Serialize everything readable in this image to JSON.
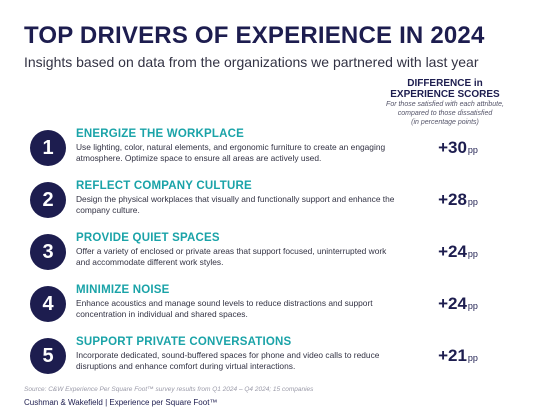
{
  "header": {
    "title": "TOP DRIVERS OF EXPERIENCE IN 2024",
    "subtitle": "Insights based on data from the organizations we partnered with last year"
  },
  "column_header": {
    "title_line1": "DIFFERENCE in",
    "title_line2": "EXPERIENCE SCORES",
    "note_line1": "For those satisfied with each attribute,",
    "note_line2": "compared to those dissatisfied",
    "note_line3": "(in percentage points)"
  },
  "drivers": [
    {
      "number": "1",
      "title": "ENERGIZE THE WORKPLACE",
      "description": "Use lighting, color, natural elements, and ergonomic furniture to create an engaging atmosphere. Optimize space to ensure all areas are actively used.",
      "score": "+30",
      "unit": "pp"
    },
    {
      "number": "2",
      "title": "REFLECT COMPANY CULTURE",
      "description": "Design the physical workplaces that visually and functionally support and enhance the company culture.",
      "score": "+28",
      "unit": "pp"
    },
    {
      "number": "3",
      "title": "PROVIDE QUIET SPACES",
      "description": "Offer a variety of enclosed or private areas that support focused, uninterrupted work and accommodate different work styles.",
      "score": "+24",
      "unit": "pp"
    },
    {
      "number": "4",
      "title": "MINIMIZE NOISE",
      "description": "Enhance acoustics and manage sound levels to reduce distractions and support concentration in individual and shared spaces.",
      "score": "+24",
      "unit": "pp"
    },
    {
      "number": "5",
      "title": "SUPPORT PRIVATE CONVERSATIONS",
      "description": "Incorporate dedicated, sound-buffered spaces for phone and video calls to reduce disruptions and enhance comfort during virtual interactions.",
      "score": "+21",
      "unit": "pp"
    }
  ],
  "source": "Source: C&W Experience Per Square Foot™ survey results from Q1 2024 – Q4 2024; 15 companies",
  "footer": "Cushman & Wakefield | Experience per Square Foot™",
  "colors": {
    "navy": "#1d1d4f",
    "teal": "#1aa3a8"
  }
}
